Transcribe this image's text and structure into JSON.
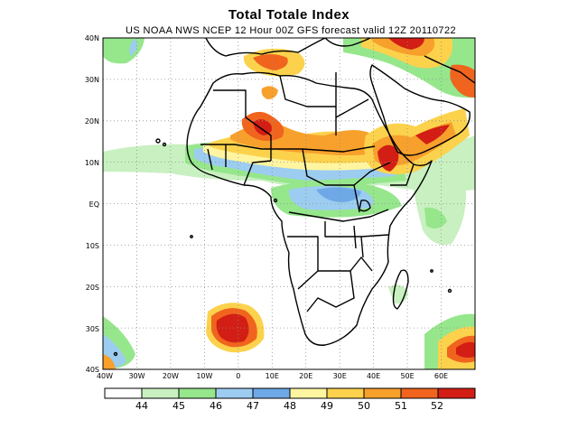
{
  "title": "Total Totale Index",
  "subtitle": "US NOAA NWS NCEP 12 Hour 00Z GFS forecast valid 12Z 20110722",
  "lat_labels": [
    "40N",
    "30N",
    "20N",
    "10N",
    "EQ",
    "10S",
    "20S",
    "30S",
    "40S"
  ],
  "lon_labels": [
    "40W",
    "30W",
    "20W",
    "10W",
    "0",
    "10E",
    "20E",
    "30E",
    "40E",
    "50E",
    "60E"
  ],
  "colorbar": {
    "labels": [
      "44",
      "45",
      "46",
      "47",
      "48",
      "49",
      "50",
      "51",
      "52"
    ],
    "colors": [
      "#ffffff",
      "#c8f0c0",
      "#96e68c",
      "#9ccdf0",
      "#6ea8e6",
      "#fff5a0",
      "#fcd24c",
      "#f7a02c",
      "#f0641e",
      "#d21e14"
    ]
  },
  "map_colors": {
    "boundary": "#000000",
    "grid": "#909090"
  }
}
